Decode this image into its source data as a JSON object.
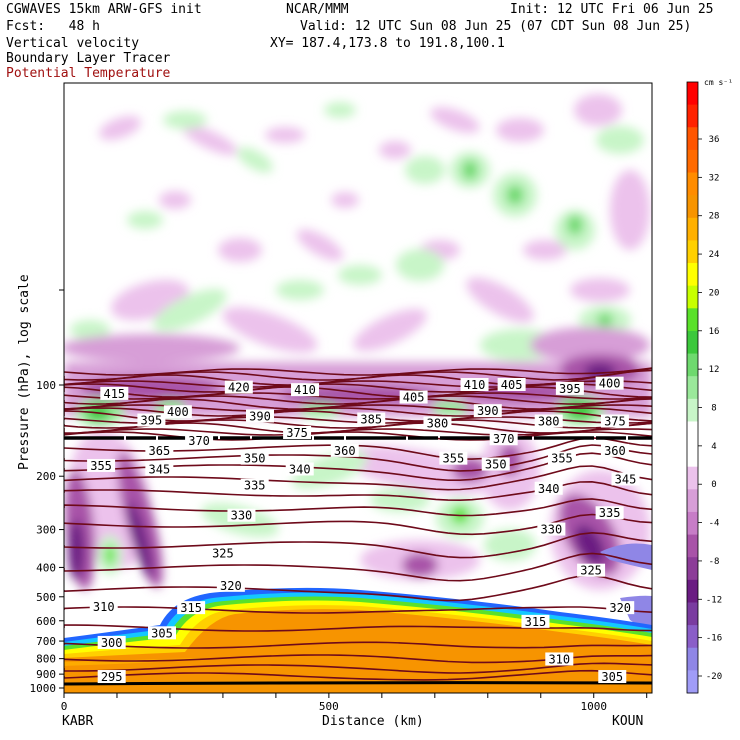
{
  "header": {
    "line1_left": "CGWAVES 15km ARW-GFS init",
    "line1_center": "NCAR/MMM",
    "line1_right": "Init: 12 UTC Fri 06 Jun 25",
    "line2_left": "Fcst:   48 h",
    "line2_right": "Valid: 12 UTC Sun 08 Jun 25 (07 CDT Sun 08 Jun 25)",
    "line3_left": "Vertical velocity",
    "line3_right": "XY= 187.4,173.8 to 191.8,100.1",
    "line4_left": "Boundary Layer Tracer",
    "line5_left": "Potential Temperature"
  },
  "colors": {
    "theta_contour": "#6e0a1a",
    "surface": "#000000",
    "blt_fill": "#f79400"
  },
  "chart_data": {
    "type": "heatmap",
    "xlabel": "Distance (km)",
    "ylabel": "Pressure (hPa), log scale",
    "x_ticks": [
      0,
      500,
      1000
    ],
    "xlim": [
      0,
      1110
    ],
    "y_ticks": [
      100,
      200,
      300,
      400,
      500,
      600,
      700,
      800,
      900,
      1000
    ],
    "endpoints": {
      "left": "KABR",
      "right": "KOUN"
    },
    "colorbar": {
      "unit": "cm s⁻¹",
      "ticks": [
        "36",
        "32",
        "28",
        "24",
        "20",
        "16",
        "12",
        "8",
        "4",
        "0",
        "-4",
        "-8",
        "-12",
        "-16",
        "-20"
      ],
      "colors": [
        "#ff0000",
        "#ff2200",
        "#ff5500",
        "#ff6a00",
        "#ff8c00",
        "#f79400",
        "#ffb000",
        "#ffd000",
        "#ffff00",
        "#c8ff00",
        "#5ae12a",
        "#3cc83c",
        "#6ed96e",
        "#9ae89a",
        "#c8f5c8",
        "#ffffff",
        "#ffffff",
        "#ecc2ec",
        "#d79ed7",
        "#c77dc7",
        "#a853a8",
        "#8c3c98",
        "#6a1c82",
        "#7a3ca0",
        "#8a5ec8",
        "#8f86e6",
        "#a09cf7"
      ]
    },
    "theta_labels": [
      {
        "text": "415",
        "x": 95,
        "p": 107
      },
      {
        "text": "420",
        "x": 330,
        "p": 102
      },
      {
        "text": "410",
        "x": 455,
        "p": 104
      },
      {
        "text": "410",
        "x": 775,
        "p": 100
      },
      {
        "text": "405",
        "x": 845,
        "p": 100
      },
      {
        "text": "395",
        "x": 955,
        "p": 103
      },
      {
        "text": "400",
        "x": 1030,
        "p": 99
      },
      {
        "text": "400",
        "x": 215,
        "p": 123
      },
      {
        "text": "390",
        "x": 370,
        "p": 127
      },
      {
        "text": "405",
        "x": 660,
        "p": 110
      },
      {
        "text": "390",
        "x": 800,
        "p": 122
      },
      {
        "text": "395",
        "x": 165,
        "p": 131
      },
      {
        "text": "385",
        "x": 580,
        "p": 130
      },
      {
        "text": "380",
        "x": 705,
        "p": 134
      },
      {
        "text": "380",
        "x": 915,
        "p": 132
      },
      {
        "text": "375",
        "x": 1040,
        "p": 132
      },
      {
        "text": "375",
        "x": 440,
        "p": 144
      },
      {
        "text": "370",
        "x": 255,
        "p": 153
      },
      {
        "text": "370",
        "x": 830,
        "p": 151
      },
      {
        "text": "365",
        "x": 180,
        "p": 165
      },
      {
        "text": "360",
        "x": 530,
        "p": 165
      },
      {
        "text": "360",
        "x": 1040,
        "p": 165
      },
      {
        "text": "355",
        "x": 70,
        "p": 185
      },
      {
        "text": "345",
        "x": 180,
        "p": 190
      },
      {
        "text": "350",
        "x": 360,
        "p": 175
      },
      {
        "text": "340",
        "x": 445,
        "p": 190
      },
      {
        "text": "355",
        "x": 735,
        "p": 175
      },
      {
        "text": "350",
        "x": 815,
        "p": 183
      },
      {
        "text": "355",
        "x": 940,
        "p": 175
      },
      {
        "text": "335",
        "x": 360,
        "p": 215
      },
      {
        "text": "340",
        "x": 915,
        "p": 220
      },
      {
        "text": "345",
        "x": 1060,
        "p": 205
      },
      {
        "text": "330",
        "x": 335,
        "p": 270
      },
      {
        "text": "335",
        "x": 1030,
        "p": 265
      },
      {
        "text": "330",
        "x": 920,
        "p": 300
      },
      {
        "text": "325",
        "x": 300,
        "p": 360
      },
      {
        "text": "325",
        "x": 995,
        "p": 410
      },
      {
        "text": "320",
        "x": 315,
        "p": 460
      },
      {
        "text": "320",
        "x": 1050,
        "p": 545
      },
      {
        "text": "315",
        "x": 240,
        "p": 545
      },
      {
        "text": "315",
        "x": 890,
        "p": 605
      },
      {
        "text": "310",
        "x": 75,
        "p": 540
      },
      {
        "text": "305",
        "x": 185,
        "p": 660
      },
      {
        "text": "300",
        "x": 90,
        "p": 710
      },
      {
        "text": "310",
        "x": 935,
        "p": 805
      },
      {
        "text": "295",
        "x": 90,
        "p": 920
      },
      {
        "text": "305",
        "x": 1035,
        "p": 920
      }
    ]
  }
}
